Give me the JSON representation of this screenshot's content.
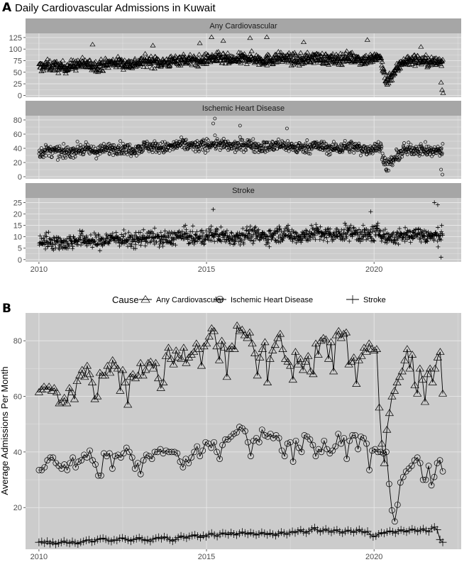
{
  "panel_a": {
    "letter": "A",
    "title": "Daily Cardiovascular Admissions in Kuwait"
  },
  "panel_b": {
    "letter": "B",
    "legend_title": "Cause"
  },
  "colors": {
    "panel_bg": "#cccccc",
    "strip_bg": "#a6a6a6",
    "grid": "#ebebeb",
    "mark": "#000000"
  },
  "chart_data": [
    {
      "type": "scatter",
      "facet": "Any Cardiovascular",
      "x_range": [
        2009.6,
        2022.6
      ],
      "ylim": [
        -4,
        134
      ],
      "y_ticks": [
        0,
        25,
        50,
        75,
        100,
        125
      ],
      "x_ticks": [
        2010,
        2015,
        2020
      ],
      "daily_pattern": {
        "mean_2010": 61,
        "mean_2015": 78,
        "mean_2019": 80,
        "covid_min": 28,
        "spread": 16
      },
      "outlier_points": [
        {
          "x": 2011.6,
          "y": 110
        },
        {
          "x": 2013.4,
          "y": 108
        },
        {
          "x": 2014.8,
          "y": 113
        },
        {
          "x": 2015.15,
          "y": 126
        },
        {
          "x": 2015.5,
          "y": 118
        },
        {
          "x": 2016.3,
          "y": 124
        },
        {
          "x": 2016.8,
          "y": 126
        },
        {
          "x": 2017.9,
          "y": 115
        },
        {
          "x": 2019.8,
          "y": 120
        },
        {
          "x": 2021.4,
          "y": 105
        },
        {
          "x": 2022.0,
          "y": 28
        },
        {
          "x": 2022.03,
          "y": 12
        },
        {
          "x": 2022.06,
          "y": 5
        }
      ]
    },
    {
      "type": "scatter",
      "facet": "Ischemic Heart Disease",
      "x_range": [
        2009.6,
        2022.6
      ],
      "ylim": [
        -3,
        86
      ],
      "y_ticks": [
        0,
        20,
        40,
        60,
        80
      ],
      "x_ticks": [
        2010,
        2015,
        2020
      ],
      "daily_pattern": {
        "mean_2010": 34,
        "mean_2015": 45,
        "mean_2019": 40,
        "covid_min": 13,
        "spread": 11
      },
      "outlier_points": [
        {
          "x": 2015.25,
          "y": 82
        },
        {
          "x": 2015.2,
          "y": 75
        },
        {
          "x": 2016.0,
          "y": 72
        },
        {
          "x": 2017.4,
          "y": 68
        },
        {
          "x": 2022.0,
          "y": 10
        },
        {
          "x": 2022.04,
          "y": 3
        }
      ]
    },
    {
      "type": "scatter",
      "facet": "Stroke",
      "x_range": [
        2009.6,
        2022.6
      ],
      "ylim": [
        -1,
        27
      ],
      "y_ticks": [
        0,
        5,
        10,
        15,
        20,
        25
      ],
      "x_ticks": [
        2010,
        2015,
        2020
      ],
      "daily_pattern": {
        "mean_2010": 7.5,
        "mean_2015": 10.2,
        "mean_2019": 11.5,
        "covid_min": 9,
        "spread": 4.5
      },
      "outlier_points": [
        {
          "x": 2015.2,
          "y": 22
        },
        {
          "x": 2019.9,
          "y": 21
        },
        {
          "x": 2021.8,
          "y": 25
        },
        {
          "x": 2021.9,
          "y": 24
        },
        {
          "x": 2022.0,
          "y": 1
        }
      ]
    },
    {
      "type": "line",
      "xlabel": "",
      "ylabel": "Average Admissions Per Month",
      "x_range": [
        2009.6,
        2022.6
      ],
      "ylim": [
        5,
        90
      ],
      "y_ticks": [
        20,
        40,
        60,
        80
      ],
      "x_ticks": [
        2010,
        2015,
        2020
      ],
      "series": [
        {
          "name": "Any Cardiovascular",
          "marker": "triangle",
          "values": [
            61.5,
            62.5,
            63.5,
            62.5,
            63.5,
            62,
            63,
            61.5,
            57.5,
            58,
            59.5,
            57.5,
            63,
            61.5,
            59,
            65.5,
            67.5,
            69.5,
            67,
            71,
            68,
            65,
            59,
            60,
            68.5,
            67.5,
            67.5,
            71,
            68.5,
            73,
            71,
            70,
            62,
            69.5,
            65,
            57,
            67,
            68,
            66.5,
            67.5,
            72,
            67.5,
            69.5,
            72,
            72.5,
            70,
            72,
            66.5,
            63,
            65,
            74.5,
            77.5,
            73.5,
            71.5,
            76.5,
            74,
            73.5,
            77.5,
            72,
            74,
            75,
            76,
            79,
            77,
            71,
            78,
            79,
            81.5,
            84.5,
            83.5,
            78,
            73,
            80,
            77.5,
            67,
            77,
            78,
            77,
            85.5,
            83.5,
            84,
            82,
            81,
            83,
            79,
            75.5,
            67.5,
            74,
            77,
            79.5,
            65,
            73.5,
            76.5,
            78.5,
            81,
            82.5,
            77,
            73.5,
            72.5,
            71,
            66,
            76,
            71.5,
            73.5,
            69.5,
            72.5,
            74.5,
            69,
            68,
            79,
            75,
            80,
            81,
            80.5,
            73.5,
            79.5,
            69,
            82,
            83.5,
            81,
            82.5,
            83,
            71.5,
            72.5,
            74,
            64.5,
            73,
            74.5,
            77.5,
            76,
            79,
            77,
            76.5,
            77,
            56,
            43,
            36,
            48,
            54,
            60,
            62,
            65,
            67,
            69,
            73,
            77,
            70,
            75,
            64,
            61,
            70,
            66,
            58,
            68,
            70,
            65,
            70,
            74,
            76,
            61
          ]
        },
        {
          "name": "Ischemic Heart Disease",
          "marker": "circle",
          "values": [
            33.5,
            33.5,
            34.5,
            37,
            38,
            38,
            36,
            35,
            34,
            35.5,
            33.5,
            36,
            38,
            34.5,
            36.5,
            37,
            39,
            38,
            40.5,
            37,
            35.5,
            31.5,
            31.5,
            39.5,
            38.5,
            39.5,
            34,
            38.5,
            39,
            38,
            39.5,
            41.5,
            40,
            38,
            34,
            36,
            32,
            37,
            39,
            38.5,
            37.5,
            40,
            40,
            41,
            39.5,
            40.5,
            40,
            40,
            40,
            39.5,
            36.5,
            34.5,
            37.5,
            36,
            38,
            40,
            42,
            38.5,
            40.5,
            43.5,
            43,
            41.5,
            43.5,
            40,
            37.5,
            42.5,
            44.5,
            44.5,
            45.5,
            46.5,
            47,
            49,
            48.5,
            47.5,
            43.5,
            38.5,
            44,
            45,
            43.5,
            48,
            46,
            45.5,
            46.5,
            45,
            46,
            45,
            40.5,
            38.5,
            43,
            43.5,
            36.5,
            44,
            41.5,
            40,
            46,
            45.5,
            44.5,
            42.5,
            38.5,
            41,
            40,
            44,
            41,
            39.5,
            40.5,
            42,
            46.5,
            43,
            45,
            37.5,
            44,
            46,
            46,
            41,
            45.5,
            45,
            43,
            33.5,
            40.5,
            41,
            40,
            40,
            39.5,
            40,
            28.5,
            19,
            15,
            21,
            29,
            31,
            33,
            34,
            35,
            37,
            38,
            36,
            30,
            30,
            35,
            28,
            31,
            36,
            37,
            33
          ]
        },
        {
          "name": "Stroke",
          "marker": "cross",
          "values": [
            7.5,
            7.8,
            7.2,
            7.9,
            7,
            7.6,
            6.8,
            7.2,
            7.5,
            8,
            7.4,
            7.1,
            7.8,
            7.3,
            6.9,
            7.5,
            7.8,
            8.2,
            8.4,
            7.6,
            7.9,
            8.5,
            8.8,
            9,
            8.6,
            8.1,
            7.8,
            8.4,
            8.2,
            8.9,
            9.1,
            8.7,
            8.3,
            7.9,
            8.5,
            8.8,
            9.2,
            8.6,
            8.1,
            8.4,
            7.8,
            8.6,
            9,
            9.3,
            8.8,
            9.5,
            9.1,
            8.4,
            7.9,
            8.5,
            9.2,
            9.8,
            9.4,
            9,
            9.6,
            9.9,
            10.2,
            9.7,
            9.2,
            10,
            9.5,
            10.3,
            10.8,
            10.1,
            9.6,
            10.4,
            10.9,
            10.6,
            10.2,
            11,
            10.5,
            10.1,
            10.7,
            11.2,
            10.8,
            10.4,
            11,
            10.6,
            10.1,
            10.5,
            11.1,
            10.7,
            10.2,
            10.8,
            10.4,
            9.9,
            10.6,
            11.2,
            10.8,
            10.3,
            10.9,
            11.4,
            10.9,
            11.5,
            12,
            11.3,
            10.8,
            11.5,
            12.2,
            12.8,
            11.9,
            11.3,
            11.8,
            12.3,
            11.6,
            11.1,
            11.7,
            12,
            11.3,
            10.8,
            11.4,
            11.9,
            11.5,
            11,
            11.6,
            12.1,
            11.4,
            10.9,
            11.5,
            10.2,
            9.5,
            9.8,
            10.5,
            11,
            10.7,
            11.2,
            11.6,
            11.3,
            10.8,
            11.5,
            12,
            11.6,
            11.2,
            11.8,
            12.3,
            11.9,
            11.4,
            11.9,
            12.4,
            11.7,
            11.3,
            12.5,
            13,
            12,
            8.5,
            7.5
          ]
        }
      ]
    }
  ]
}
